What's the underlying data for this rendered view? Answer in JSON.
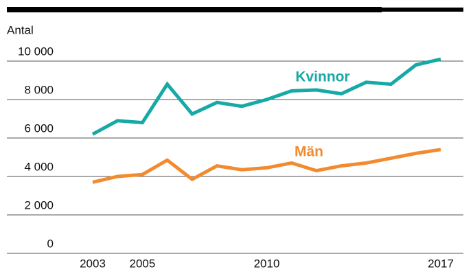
{
  "chart_data": {
    "type": "line",
    "y_label": "Antal",
    "x": [
      2003,
      2004,
      2005,
      2006,
      2007,
      2008,
      2009,
      2010,
      2011,
      2012,
      2013,
      2014,
      2015,
      2016,
      2017
    ],
    "xlim": [
      2003,
      2017
    ],
    "xticks": [
      2003,
      2005,
      2010,
      2017
    ],
    "ylim": [
      0,
      10500
    ],
    "yticks": [
      0,
      {
        "value": 2000,
        "label": "2 000"
      },
      {
        "value": 4000,
        "label": "4 000"
      },
      {
        "value": 6000,
        "label": "6 000"
      },
      {
        "value": 8000,
        "label": "8 000"
      },
      {
        "value": 10000,
        "label": "10 000"
      }
    ],
    "grid": true,
    "series": [
      {
        "name": "Kvinnor",
        "color": "#17a9a5",
        "values": [
          6200,
          6900,
          6800,
          8800,
          7250,
          7850,
          7650,
          8000,
          8450,
          8500,
          8300,
          8900,
          8800,
          9800,
          10100
        ]
      },
      {
        "name": "Män",
        "color": "#f28b30",
        "values": [
          3700,
          4000,
          4100,
          4850,
          3850,
          4550,
          4350,
          4450,
          4700,
          4300,
          4550,
          4700,
          4950,
          5200,
          5400
        ]
      }
    ]
  }
}
